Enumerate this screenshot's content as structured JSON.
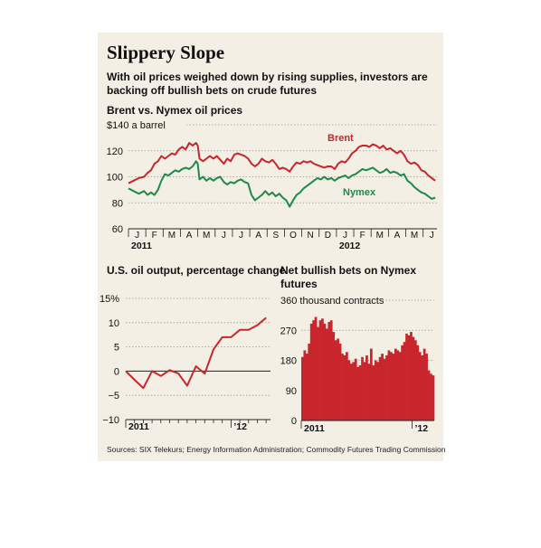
{
  "header": {
    "title": "Slippery Slope",
    "subtitle": "With oil prices weighed down by rising supplies, investors are backing off bullish bets on crude futures"
  },
  "source": "Sources: SIX Telekurs; Energy Information Administration; Commodity Futures Trading Commission",
  "colors": {
    "background": "#f4efe4",
    "brent": "#c8262c",
    "nymex": "#1d8a4a",
    "bars": "#c8262c",
    "grid": "#9a9a9a"
  },
  "chart_data": [
    {
      "id": "prices",
      "type": "line",
      "title": "Brent vs. Nymex oil prices",
      "unit_label": "$140 a barrel",
      "ylim": [
        60,
        140
      ],
      "yticks": [
        140,
        120,
        100,
        80,
        60
      ],
      "ytick_labels": [
        "$140 a barrel",
        "120",
        "100",
        "80",
        "60"
      ],
      "xlim": [
        0,
        17.8
      ],
      "month_labels": [
        "J",
        "F",
        "M",
        "A",
        "M",
        "J",
        "J",
        "A",
        "S",
        "O",
        "N",
        "D",
        "J",
        "F",
        "M",
        "A",
        "M",
        "J"
      ],
      "year_labels": [
        {
          "month_index": 0,
          "label": "2011"
        },
        {
          "month_index": 12,
          "label": "2012"
        }
      ],
      "series": [
        {
          "name": "Brent",
          "color": "#c8262c",
          "points": [
            [
              0.0,
              95
            ],
            [
              0.3,
              97
            ],
            [
              0.6,
              99
            ],
            [
              0.9,
              100
            ],
            [
              1.1,
              103
            ],
            [
              1.3,
              105
            ],
            [
              1.5,
              110
            ],
            [
              1.7,
              112
            ],
            [
              1.9,
              116
            ],
            [
              2.1,
              114
            ],
            [
              2.3,
              116
            ],
            [
              2.5,
              118
            ],
            [
              2.7,
              117
            ],
            [
              2.9,
              121
            ],
            [
              3.1,
              123
            ],
            [
              3.3,
              121
            ],
            [
              3.5,
              126
            ],
            [
              3.7,
              124
            ],
            [
              3.9,
              126
            ],
            [
              4.0,
              124
            ],
            [
              4.1,
              114
            ],
            [
              4.3,
              112
            ],
            [
              4.5,
              114
            ],
            [
              4.7,
              116
            ],
            [
              4.9,
              114
            ],
            [
              5.1,
              116
            ],
            [
              5.3,
              113
            ],
            [
              5.5,
              110
            ],
            [
              5.7,
              114
            ],
            [
              5.9,
              112
            ],
            [
              6.1,
              117
            ],
            [
              6.3,
              118
            ],
            [
              6.5,
              117
            ],
            [
              6.7,
              116
            ],
            [
              6.9,
              114
            ],
            [
              7.1,
              110
            ],
            [
              7.3,
              108
            ],
            [
              7.5,
              110
            ],
            [
              7.7,
              114
            ],
            [
              7.9,
              112
            ],
            [
              8.1,
              111
            ],
            [
              8.3,
              113
            ],
            [
              8.5,
              110
            ],
            [
              8.7,
              106
            ],
            [
              8.9,
              107
            ],
            [
              9.1,
              106
            ],
            [
              9.3,
              104
            ],
            [
              9.5,
              108
            ],
            [
              9.7,
              111
            ],
            [
              9.9,
              110
            ],
            [
              10.1,
              112
            ],
            [
              10.3,
              111
            ],
            [
              10.5,
              112
            ],
            [
              10.7,
              110
            ],
            [
              10.9,
              109
            ],
            [
              11.1,
              108
            ],
            [
              11.3,
              107
            ],
            [
              11.5,
              108
            ],
            [
              11.7,
              108
            ],
            [
              11.9,
              106
            ],
            [
              12.1,
              110
            ],
            [
              12.3,
              112
            ],
            [
              12.5,
              111
            ],
            [
              12.7,
              114
            ],
            [
              12.9,
              118
            ],
            [
              13.1,
              120
            ],
            [
              13.3,
              123
            ],
            [
              13.5,
              124
            ],
            [
              13.7,
              124
            ],
            [
              13.9,
              123
            ],
            [
              14.1,
              125
            ],
            [
              14.3,
              124
            ],
            [
              14.5,
              122
            ],
            [
              14.7,
              124
            ],
            [
              14.9,
              121
            ],
            [
              15.1,
              122
            ],
            [
              15.3,
              120
            ],
            [
              15.5,
              118
            ],
            [
              15.7,
              120
            ],
            [
              15.9,
              117
            ],
            [
              16.1,
              112
            ],
            [
              16.3,
              110
            ],
            [
              16.5,
              111
            ],
            [
              16.7,
              109
            ],
            [
              16.9,
              105
            ],
            [
              17.1,
              104
            ],
            [
              17.3,
              101
            ],
            [
              17.5,
              99
            ],
            [
              17.7,
              97
            ]
          ]
        },
        {
          "name": "Nymex",
          "color": "#1d8a4a",
          "points": [
            [
              0.0,
              91
            ],
            [
              0.3,
              89
            ],
            [
              0.6,
              87
            ],
            [
              0.9,
              89
            ],
            [
              1.1,
              86
            ],
            [
              1.3,
              88
            ],
            [
              1.5,
              86
            ],
            [
              1.7,
              90
            ],
            [
              1.9,
              97
            ],
            [
              2.1,
              102
            ],
            [
              2.3,
              101
            ],
            [
              2.5,
              103
            ],
            [
              2.7,
              105
            ],
            [
              2.9,
              104
            ],
            [
              3.1,
              106
            ],
            [
              3.3,
              107
            ],
            [
              3.5,
              106
            ],
            [
              3.7,
              108
            ],
            [
              3.9,
              112
            ],
            [
              4.0,
              110
            ],
            [
              4.1,
              98
            ],
            [
              4.3,
              100
            ],
            [
              4.5,
              97
            ],
            [
              4.7,
              99
            ],
            [
              4.9,
              97
            ],
            [
              5.1,
              99
            ],
            [
              5.3,
              100
            ],
            [
              5.5,
              96
            ],
            [
              5.7,
              94
            ],
            [
              5.9,
              96
            ],
            [
              6.1,
              95
            ],
            [
              6.3,
              97
            ],
            [
              6.5,
              98
            ],
            [
              6.7,
              96
            ],
            [
              6.9,
              95
            ],
            [
              7.1,
              86
            ],
            [
              7.3,
              82
            ],
            [
              7.5,
              84
            ],
            [
              7.7,
              86
            ],
            [
              7.9,
              89
            ],
            [
              8.1,
              86
            ],
            [
              8.3,
              88
            ],
            [
              8.5,
              85
            ],
            [
              8.7,
              87
            ],
            [
              8.9,
              84
            ],
            [
              9.1,
              82
            ],
            [
              9.3,
              77
            ],
            [
              9.5,
              82
            ],
            [
              9.7,
              86
            ],
            [
              9.9,
              88
            ],
            [
              10.1,
              91
            ],
            [
              10.3,
              93
            ],
            [
              10.5,
              95
            ],
            [
              10.7,
              97
            ],
            [
              10.9,
              99
            ],
            [
              11.1,
              98
            ],
            [
              11.3,
              100
            ],
            [
              11.5,
              98
            ],
            [
              11.7,
              99
            ],
            [
              11.9,
              97
            ],
            [
              12.1,
              99
            ],
            [
              12.3,
              100
            ],
            [
              12.5,
              101
            ],
            [
              12.7,
              99
            ],
            [
              12.9,
              101
            ],
            [
              13.1,
              102
            ],
            [
              13.3,
              104
            ],
            [
              13.5,
              106
            ],
            [
              13.7,
              105
            ],
            [
              13.9,
              106
            ],
            [
              14.1,
              107
            ],
            [
              14.3,
              105
            ],
            [
              14.5,
              103
            ],
            [
              14.7,
              104
            ],
            [
              14.9,
              106
            ],
            [
              15.1,
              103
            ],
            [
              15.3,
              104
            ],
            [
              15.5,
              103
            ],
            [
              15.7,
              101
            ],
            [
              15.9,
              102
            ],
            [
              16.1,
              97
            ],
            [
              16.3,
              95
            ],
            [
              16.5,
              92
            ],
            [
              16.7,
              90
            ],
            [
              16.9,
              88
            ],
            [
              17.1,
              87
            ],
            [
              17.3,
              85
            ],
            [
              17.5,
              83
            ],
            [
              17.7,
              84
            ]
          ]
        }
      ]
    },
    {
      "id": "output",
      "type": "line",
      "title": "U.S. oil output, percentage change",
      "ylim": [
        -10,
        15
      ],
      "yticks": [
        15,
        10,
        5,
        0,
        -5,
        -10
      ],
      "ytick_labels": [
        "15%",
        "10",
        "5",
        "0",
        "−5",
        "−10"
      ],
      "xlim": [
        0,
        16.5
      ],
      "year_labels": [
        {
          "month_index": 0,
          "label": "2011"
        },
        {
          "month_index": 12,
          "label": "’12"
        }
      ],
      "series": [
        {
          "name": "",
          "color": "#c8262c",
          "points": [
            [
              0,
              0
            ],
            [
              1,
              -1.8
            ],
            [
              2,
              -3.5
            ],
            [
              3,
              0
            ],
            [
              4,
              -1
            ],
            [
              5,
              0.2
            ],
            [
              6,
              -0.5
            ],
            [
              7,
              -3
            ],
            [
              8,
              1
            ],
            [
              9,
              -0.5
            ],
            [
              10,
              4.5
            ],
            [
              11,
              7
            ],
            [
              12,
              7
            ],
            [
              13,
              8.5
            ],
            [
              14,
              8.5
            ],
            [
              15,
              9.5
            ],
            [
              16,
              11
            ]
          ]
        }
      ]
    },
    {
      "id": "bets",
      "type": "bar",
      "title": "Net bullish bets on Nymex futures",
      "unit_label": "360 thousand contracts",
      "ylim": [
        0,
        360
      ],
      "yticks": [
        360,
        270,
        180,
        90,
        0
      ],
      "ytick_labels": [
        "360 thousand contracts",
        "270",
        "180",
        "90",
        "0"
      ],
      "year_labels": [
        {
          "bar_index": 0,
          "label": "2011"
        },
        {
          "bar_index": 50,
          "label": "’12"
        }
      ],
      "series": [
        {
          "name": "",
          "color": "#c8262c",
          "values": [
            190,
            210,
            200,
            230,
            290,
            300,
            310,
            280,
            300,
            305,
            290,
            275,
            295,
            300,
            265,
            240,
            245,
            230,
            200,
            195,
            205,
            180,
            170,
            175,
            185,
            160,
            165,
            190,
            175,
            195,
            170,
            215,
            165,
            180,
            175,
            190,
            200,
            185,
            195,
            210,
            205,
            200,
            215,
            210,
            205,
            225,
            235,
            260,
            255,
            265,
            250,
            240,
            225,
            205,
            195,
            215,
            200,
            150,
            140,
            135
          ]
        }
      ]
    }
  ]
}
